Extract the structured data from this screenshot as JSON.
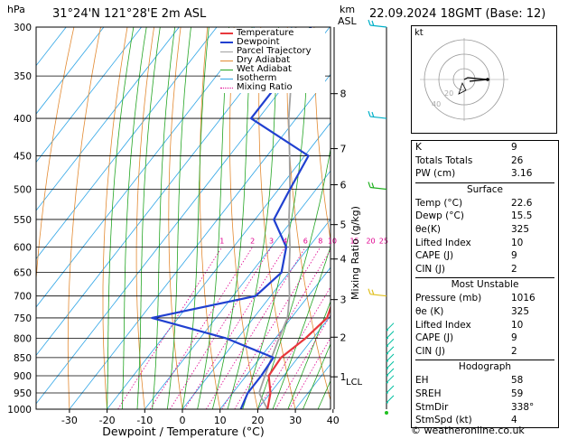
{
  "header": {
    "pressure_unit": "hPa",
    "location": "31°24'N  121°28'E  2m  ASL",
    "height_unit": "km",
    "height_unit2": "ASL",
    "datetime": "22.09.2024  18GMT  (Base: 12)"
  },
  "chart_data": {
    "type": "line",
    "xlabel": "Dewpoint / Temperature (°C)",
    "ylabel": "Mixing Ratio (g/kg)",
    "x_ticks": [
      -30,
      -20,
      -10,
      0,
      10,
      20,
      30,
      40
    ],
    "pressure_levels": [
      300,
      350,
      400,
      450,
      500,
      550,
      600,
      650,
      700,
      750,
      800,
      850,
      900,
      950,
      1000
    ],
    "altitude_ticks": [
      {
        "label": "8",
        "p": 370
      },
      {
        "label": "7",
        "p": 440
      },
      {
        "label": "6",
        "p": 493
      },
      {
        "label": "5",
        "p": 559
      },
      {
        "label": "4",
        "p": 623
      },
      {
        "label": "3",
        "p": 708
      },
      {
        "label": "2",
        "p": 797
      },
      {
        "label": "1",
        "p": 903
      }
    ],
    "lcl": {
      "label": "LCL",
      "p": 915
    },
    "mixing_ratio_labels": [
      "1",
      "2",
      "3",
      "4",
      "6",
      "8",
      "10",
      "15",
      "20",
      "25"
    ],
    "legend": [
      "Temperature",
      "Dewpoint",
      "Parcel Trajectory",
      "Dry Adiabat",
      "Wet Adiabat",
      "Isotherm",
      "Mixing Ratio"
    ],
    "colors": {
      "temperature": "#e8383d",
      "dewpoint": "#2040d0",
      "parcel": "#a0a0a0",
      "dry_adiabat": "#e38a32",
      "wet_adiabat": "#23a523",
      "isotherm": "#2fa5e6",
      "mixing_ratio": "#e0008f",
      "wind": "#00c0a0"
    },
    "series": [
      {
        "name": "Temperature",
        "points": [
          [
            22.6,
            1000
          ],
          [
            20,
            950
          ],
          [
            16,
            900
          ],
          [
            15.5,
            850
          ],
          [
            18,
            800
          ],
          [
            19.5,
            750
          ],
          [
            17,
            700
          ],
          [
            12,
            650
          ],
          [
            7,
            600
          ],
          [
            2,
            550
          ],
          [
            -4,
            500
          ],
          [
            -11,
            450
          ],
          [
            -17,
            400
          ],
          [
            -24,
            350
          ],
          [
            -33,
            300
          ]
        ]
      },
      {
        "name": "Dewpoint",
        "points": [
          [
            15.5,
            1000
          ],
          [
            14,
            950
          ],
          [
            14,
            900
          ],
          [
            13.5,
            850
          ],
          [
            -3,
            800
          ],
          [
            -27,
            750
          ],
          [
            -4,
            700
          ],
          [
            -2,
            650
          ],
          [
            -6,
            600
          ],
          [
            -15,
            550
          ],
          [
            -17,
            500
          ],
          [
            -19,
            450
          ],
          [
            -42,
            400
          ],
          [
            -42,
            350
          ],
          [
            -45,
            300
          ]
        ]
      },
      {
        "name": "Parcel Trajectory",
        "points": [
          [
            22.6,
            1000
          ],
          [
            17,
            950
          ],
          [
            15,
            900
          ],
          [
            13,
            850
          ],
          [
            11,
            800
          ],
          [
            9,
            750
          ],
          [
            5,
            700
          ],
          [
            0,
            650
          ],
          [
            -5,
            600
          ],
          [
            -11,
            550
          ],
          [
            -17,
            500
          ],
          [
            -24,
            450
          ],
          [
            -32,
            400
          ],
          [
            -40,
            350
          ],
          [
            -49,
            300
          ]
        ]
      }
    ]
  },
  "stats": [
    {
      "label": "K",
      "value": "9"
    },
    {
      "label": "Totals Totals",
      "value": "26"
    },
    {
      "label": "PW (cm)",
      "value": "3.16"
    }
  ],
  "surface": {
    "title": "Surface",
    "rows": [
      {
        "label": "Temp (°C)",
        "value": "22.6"
      },
      {
        "label": "Dewp (°C)",
        "value": "15.5"
      },
      {
        "label": "θe(K)",
        "value": "325"
      },
      {
        "label": "Lifted Index",
        "value": "10"
      },
      {
        "label": "CAPE (J)",
        "value": "9"
      },
      {
        "label": "CIN (J)",
        "value": "2"
      }
    ]
  },
  "most_unstable": {
    "title": "Most Unstable",
    "rows": [
      {
        "label": "Pressure (mb)",
        "value": "1016"
      },
      {
        "label": "θe (K)",
        "value": "325"
      },
      {
        "label": "Lifted Index",
        "value": "10"
      },
      {
        "label": "CAPE (J)",
        "value": "9"
      },
      {
        "label": "CIN (J)",
        "value": "2"
      }
    ]
  },
  "hodograph_table": {
    "title": "Hodograph",
    "rows": [
      {
        "label": "EH",
        "value": "58"
      },
      {
        "label": "SREH",
        "value": "59"
      },
      {
        "label": "StmDir",
        "value": "338°"
      },
      {
        "label": "StmSpd (kt)",
        "value": "4"
      }
    ]
  },
  "hodograph": {
    "unit": "kt",
    "ring_labels": [
      "20",
      "40"
    ]
  },
  "footer": "© weatheronline.co.uk"
}
